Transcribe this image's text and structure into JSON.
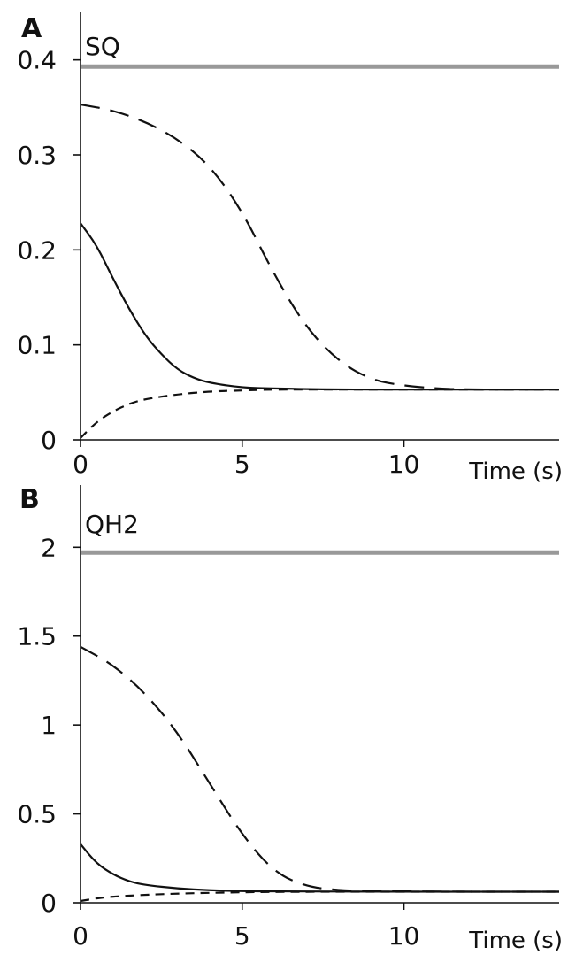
{
  "chart_data": [
    {
      "panel_label": "A",
      "title": "SQ",
      "type": "line",
      "xlabel": "Time (s)",
      "ylabel": "",
      "xlim": [
        0,
        14.8
      ],
      "ylim": [
        0,
        0.45
      ],
      "xticks": [
        0,
        5,
        10
      ],
      "xtick_labels": [
        "0",
        "5",
        "10"
      ],
      "yticks": [
        0,
        0.1,
        0.2,
        0.3,
        0.4
      ],
      "ytick_labels": [
        "0",
        "0.1",
        "0.2",
        "0.3",
        "0.4"
      ],
      "grid": false,
      "series": [
        {
          "style": "gray-thick",
          "color": "#999999",
          "x": [
            0,
            14.8
          ],
          "y": [
            0.393,
            0.393
          ]
        },
        {
          "style": "long-dash",
          "color": "#111111",
          "x": [
            0,
            1,
            2,
            3,
            4,
            5,
            6,
            7,
            8,
            9,
            10,
            11,
            12,
            13,
            14.8
          ],
          "y": [
            0.353,
            0.347,
            0.335,
            0.317,
            0.289,
            0.241,
            0.173,
            0.117,
            0.082,
            0.063,
            0.057,
            0.054,
            0.053,
            0.053,
            0.053
          ]
        },
        {
          "style": "solid",
          "color": "#111111",
          "x": [
            0,
            0.5,
            1,
            1.5,
            2,
            2.5,
            3,
            3.5,
            4,
            5,
            6,
            8,
            10,
            14.8
          ],
          "y": [
            0.228,
            0.205,
            0.17,
            0.138,
            0.11,
            0.09,
            0.074,
            0.065,
            0.06,
            0.055,
            0.054,
            0.053,
            0.053,
            0.053
          ]
        },
        {
          "style": "short-dash",
          "color": "#111111",
          "x": [
            0,
            0.5,
            1,
            1.5,
            2,
            3,
            4,
            5,
            6,
            8,
            10,
            14.8
          ],
          "y": [
            0.002,
            0.019,
            0.03,
            0.038,
            0.043,
            0.048,
            0.051,
            0.052,
            0.053,
            0.053,
            0.053,
            0.053
          ]
        }
      ]
    },
    {
      "panel_label": "B",
      "title": "QH2",
      "type": "line",
      "xlabel": "Time (s)",
      "ylabel": "",
      "xlim": [
        0,
        14.8
      ],
      "ylim": [
        0,
        2.35
      ],
      "xticks": [
        0,
        5,
        10
      ],
      "xtick_labels": [
        "0",
        "5",
        "10"
      ],
      "yticks": [
        0,
        0.5,
        1,
        1.5,
        2
      ],
      "ytick_labels": [
        "0",
        "0.5",
        "1",
        "1.5",
        "2"
      ],
      "grid": false,
      "series": [
        {
          "style": "gray-thick",
          "color": "#999999",
          "x": [
            0,
            14.8
          ],
          "y": [
            1.97,
            1.97
          ]
        },
        {
          "style": "long-dash",
          "color": "#111111",
          "x": [
            0,
            1,
            2,
            3,
            4,
            5,
            6,
            7,
            8,
            9,
            10,
            11,
            12,
            14.8
          ],
          "y": [
            1.44,
            1.34,
            1.18,
            0.96,
            0.67,
            0.38,
            0.17,
            0.09,
            0.07,
            0.066,
            0.064,
            0.063,
            0.062,
            0.062
          ]
        },
        {
          "style": "solid",
          "color": "#111111",
          "x": [
            0,
            0.5,
            1,
            1.5,
            2,
            3,
            4,
            5,
            6,
            8,
            10,
            14.8
          ],
          "y": [
            0.33,
            0.22,
            0.16,
            0.12,
            0.1,
            0.08,
            0.07,
            0.065,
            0.064,
            0.063,
            0.062,
            0.062
          ]
        },
        {
          "style": "short-dash",
          "color": "#111111",
          "x": [
            0,
            0.5,
            1,
            2,
            3,
            4,
            5,
            6,
            8,
            10,
            14.8
          ],
          "y": [
            0.01,
            0.025,
            0.035,
            0.045,
            0.052,
            0.056,
            0.059,
            0.061,
            0.062,
            0.062,
            0.062
          ]
        }
      ]
    }
  ]
}
